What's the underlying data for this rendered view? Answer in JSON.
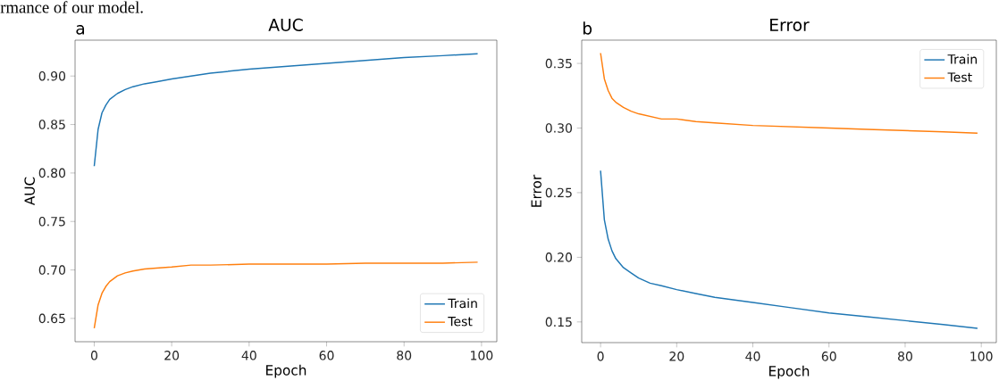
{
  "chart_data": [
    {
      "type": "line",
      "title": "AUC",
      "xlabel": "Epoch",
      "ylabel": "AUC",
      "annotations": [
        "rmance of our model.",
        "a"
      ],
      "x": [
        0,
        1,
        2,
        3,
        4,
        6,
        8,
        10,
        13,
        16,
        20,
        25,
        30,
        40,
        50,
        60,
        70,
        80,
        90,
        99
      ],
      "series": [
        {
          "name": "Train",
          "color": "#1f77b4",
          "values": [
            0.807,
            0.845,
            0.862,
            0.87,
            0.876,
            0.882,
            0.886,
            0.889,
            0.892,
            0.894,
            0.897,
            0.9,
            0.903,
            0.907,
            0.91,
            0.913,
            0.916,
            0.919,
            0.921,
            0.923
          ]
        },
        {
          "name": "Test",
          "color": "#ff7f0e",
          "values": [
            0.64,
            0.664,
            0.676,
            0.683,
            0.688,
            0.694,
            0.697,
            0.699,
            0.701,
            0.702,
            0.703,
            0.705,
            0.705,
            0.706,
            0.706,
            0.706,
            0.707,
            0.707,
            0.707,
            0.708
          ]
        }
      ],
      "xlim": [
        -4.95,
        103.95
      ],
      "ylim": [
        0.626,
        0.937
      ],
      "xticks": [
        0,
        20,
        40,
        60,
        80,
        100
      ],
      "yticks": [
        {
          "value": 0.65,
          "label": "0.65"
        },
        {
          "value": 0.7,
          "label": "0.70"
        },
        {
          "value": 0.75,
          "label": "0.75"
        },
        {
          "value": 0.8,
          "label": "0.80"
        },
        {
          "value": 0.85,
          "label": "0.85"
        },
        {
          "value": 0.9,
          "label": "0.90"
        }
      ],
      "legend": "bottom right"
    },
    {
      "type": "line",
      "title": "Error",
      "xlabel": "Epoch",
      "ylabel": "Error",
      "annotations": [
        "b"
      ],
      "x": [
        0,
        1,
        2,
        3,
        4,
        6,
        8,
        10,
        13,
        16,
        20,
        25,
        30,
        40,
        50,
        60,
        70,
        80,
        90,
        99
      ],
      "series": [
        {
          "name": "Train",
          "color": "#1f77b4",
          "values": [
            0.267,
            0.229,
            0.214,
            0.205,
            0.199,
            0.192,
            0.188,
            0.184,
            0.18,
            0.178,
            0.175,
            0.172,
            0.169,
            0.165,
            0.161,
            0.157,
            0.154,
            0.151,
            0.148,
            0.145
          ]
        },
        {
          "name": "Test",
          "color": "#ff7f0e",
          "values": [
            0.358,
            0.338,
            0.329,
            0.323,
            0.32,
            0.316,
            0.313,
            0.311,
            0.309,
            0.307,
            0.307,
            0.305,
            0.304,
            0.302,
            0.301,
            0.3,
            0.299,
            0.298,
            0.297,
            0.296
          ]
        }
      ],
      "xlim": [
        -4.95,
        103.95
      ],
      "ylim": [
        0.134,
        0.368
      ],
      "xticks": [
        0,
        20,
        40,
        60,
        80,
        100
      ],
      "yticks": [
        {
          "value": 0.15,
          "label": "0.15"
        },
        {
          "value": 0.2,
          "label": "0.20"
        },
        {
          "value": 0.25,
          "label": "0.25"
        },
        {
          "value": 0.3,
          "label": "0.30"
        },
        {
          "value": 0.35,
          "label": "0.35"
        }
      ],
      "legend": "top right"
    }
  ]
}
